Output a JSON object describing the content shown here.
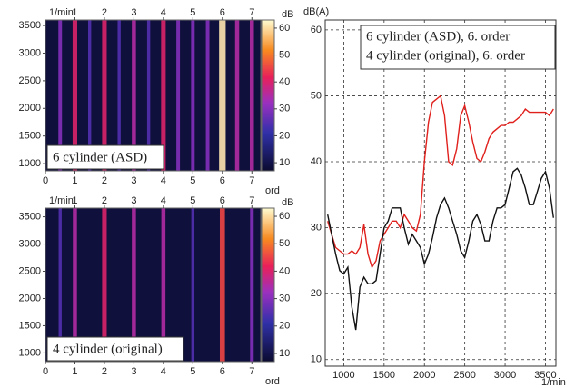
{
  "chart_data": [
    {
      "type": "heatmap",
      "annotation": "6 cylinder (ASD)",
      "annotation_color": "#e0201c",
      "x_label": "ord",
      "top_label": "1/min",
      "xlim": [
        0,
        7.3
      ],
      "xticks": [
        0,
        1,
        2,
        3,
        4,
        5,
        6,
        7
      ],
      "x2ticks": [
        1,
        2,
        3,
        4,
        5,
        6,
        7
      ],
      "ylim": [
        870,
        3600
      ],
      "yticks": [
        1000,
        1500,
        2000,
        2500,
        3000,
        3500
      ],
      "colorbar_label": "dB",
      "clim": [
        8,
        62
      ],
      "cticks": [
        10,
        20,
        30,
        40,
        50,
        60
      ],
      "orders": [
        0.5,
        1,
        1.5,
        2,
        2.5,
        3,
        3.5,
        4,
        4.5,
        5,
        5.5,
        6,
        6.5,
        7
      ],
      "levels": [
        30,
        40,
        25,
        40,
        25,
        35,
        25,
        40,
        30,
        30,
        30,
        60,
        35,
        35
      ]
    },
    {
      "type": "heatmap",
      "annotation": "4 cylinder (original)",
      "annotation_color": "#111111",
      "x_label": "ord",
      "top_label": "1/min",
      "xlim": [
        0,
        7.3
      ],
      "xticks": [
        0,
        1,
        2,
        3,
        4,
        5,
        6,
        7
      ],
      "x2ticks": [
        1,
        2,
        3,
        4,
        5,
        6,
        7
      ],
      "ylim": [
        840,
        3660
      ],
      "yticks": [
        1000,
        1500,
        2000,
        2500,
        3000,
        3500
      ],
      "colorbar_label": "dB",
      "clim": [
        8,
        62
      ],
      "cticks": [
        10,
        20,
        30,
        40,
        50,
        60
      ],
      "orders": [
        0.5,
        1,
        2,
        3,
        4,
        5,
        6,
        7
      ],
      "levels": [
        25,
        35,
        40,
        35,
        35,
        25,
        45,
        30
      ]
    },
    {
      "type": "line",
      "y_label": "dB(A)",
      "x_label": "1/min",
      "grid": true,
      "legend": "upper right",
      "xlim": [
        770,
        3630
      ],
      "xticks": [
        1000,
        1500,
        2000,
        2500,
        3000,
        3500
      ],
      "ylim": [
        9,
        61.5
      ],
      "yticks": [
        10,
        20,
        30,
        40,
        50,
        60
      ],
      "x": [
        800,
        850,
        900,
        950,
        1000,
        1050,
        1100,
        1150,
        1200,
        1250,
        1300,
        1350,
        1400,
        1450,
        1500,
        1550,
        1600,
        1650,
        1700,
        1750,
        1800,
        1850,
        1900,
        1950,
        2000,
        2050,
        2100,
        2150,
        2200,
        2250,
        2300,
        2350,
        2400,
        2450,
        2500,
        2550,
        2600,
        2650,
        2700,
        2750,
        2800,
        2850,
        2900,
        2950,
        3000,
        3050,
        3100,
        3150,
        3200,
        3250,
        3300,
        3350,
        3400,
        3450,
        3500,
        3550,
        3600
      ],
      "series": [
        {
          "name": "6 cylinder (ASD), 6. order",
          "color": "#e0201c",
          "values": [
            31,
            29,
            27,
            26.5,
            26,
            26,
            26.5,
            26,
            27,
            30.5,
            26,
            24,
            25,
            28,
            29,
            30,
            31,
            31,
            30,
            32,
            31,
            30,
            29.5,
            32,
            40,
            46,
            49,
            49.5,
            50,
            47,
            40,
            39.5,
            42,
            47,
            48.5,
            46,
            43,
            40.5,
            40,
            41.5,
            43.5,
            44.5,
            45,
            45.5,
            45.5,
            46,
            46,
            46.5,
            47,
            48,
            47.5,
            47.5,
            47.5,
            47.5,
            47.5,
            47,
            48
          ]
        },
        {
          "name": "4 cylinder (original), 6. order",
          "color": "#111111",
          "values": [
            32,
            29,
            26,
            23.5,
            23,
            24,
            18,
            14.5,
            21,
            22.5,
            21.5,
            21.5,
            22,
            26,
            30,
            31,
            33,
            33,
            33,
            30,
            27.5,
            29,
            28,
            27,
            24.5,
            26,
            28.5,
            31.5,
            33.5,
            34.5,
            33,
            31,
            29,
            26.5,
            25.5,
            28,
            31,
            32,
            30.5,
            28,
            28,
            31,
            33,
            33,
            33.5,
            36,
            38.5,
            39,
            38,
            36,
            33.5,
            33.5,
            35.5,
            37.5,
            38.5,
            36,
            31.5
          ]
        }
      ]
    }
  ]
}
